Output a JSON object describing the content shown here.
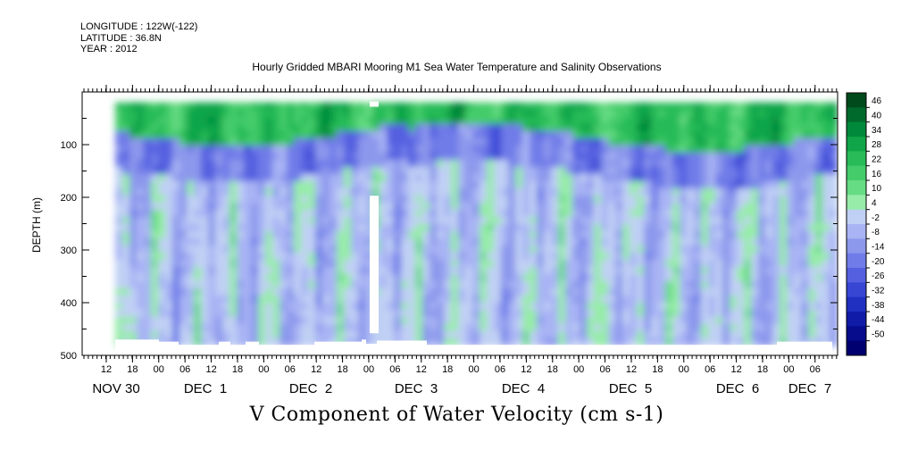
{
  "header": {
    "longitude": "LONGITUDE : 122W(-122)",
    "latitude": "LATITUDE : 36.8N",
    "year": "YEAR : 2012"
  },
  "chart_data": {
    "type": "heatmap",
    "title": "Hourly Gridded MBARI Mooring M1 Sea Water Temperature and Salinity Observations",
    "xlabel": "V Component of Water Velocity (cm s-1)",
    "ylabel": "DEPTH (m)",
    "ylim": [
      500,
      0
    ],
    "yticks": [
      100,
      200,
      300,
      400,
      500
    ],
    "xticks_hours": [
      "12",
      "18",
      "00",
      "06",
      "12",
      "18",
      "00",
      "06",
      "12",
      "18",
      "00",
      "06",
      "12",
      "18",
      "00",
      "06",
      "12",
      "18",
      "00",
      "06",
      "12",
      "18",
      "00",
      "06",
      "12",
      "18",
      "00",
      "06"
    ],
    "day_labels": [
      "NOV 30",
      "DEC  1",
      "DEC  2",
      "DEC  3",
      "DEC  4",
      "DEC  5",
      "DEC  6",
      "DEC  7"
    ],
    "colorbar_labels": [
      "46",
      "40",
      "34",
      "28",
      "22",
      "16",
      "10",
      "4",
      "-2",
      "-8",
      "-14",
      "-20",
      "-26",
      "-32",
      "-38",
      "-44",
      "-50"
    ],
    "colorbar_colors": [
      "#004a1c",
      "#006a2c",
      "#00893a",
      "#10a548",
      "#28bb58",
      "#44cc6a",
      "#66dc84",
      "#96eca8",
      "#c0d0f4",
      "#a8b4f4",
      "#8c98ec",
      "#707ce8",
      "#5460e0",
      "#3846d4",
      "#2030c0",
      "#101ca8",
      "#060c8c",
      "#000070"
    ],
    "gaps": [
      "top gap near DEC 2 00 (~20-40 m)",
      "vertical gap DEC 2 00-01 (~200-460 m)"
    ],
    "description_bands": [
      {
        "depth": [
          20,
          90
        ],
        "value": 22
      },
      {
        "depth": [
          90,
          160
        ],
        "value": -20
      },
      {
        "depth": [
          160,
          480
        ],
        "value": -4
      }
    ]
  }
}
